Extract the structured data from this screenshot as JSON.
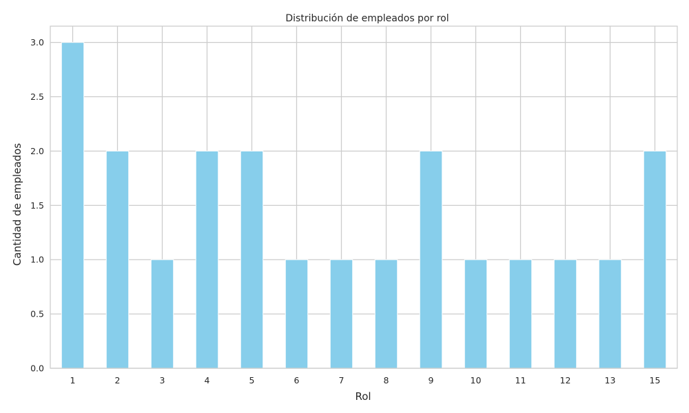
{
  "chart_data": {
    "type": "bar",
    "title": "Distribución de empleados por rol",
    "xlabel": "Rol",
    "ylabel": "Cantidad de empleados",
    "categories": [
      "1",
      "2",
      "3",
      "4",
      "5",
      "6",
      "7",
      "8",
      "9",
      "10",
      "11",
      "12",
      "13",
      "15"
    ],
    "values": [
      3,
      2,
      1,
      2,
      2,
      1,
      1,
      1,
      2,
      1,
      1,
      1,
      1,
      2
    ],
    "ylim": [
      0,
      3.15
    ],
    "yticks": [
      "0.0",
      "0.5",
      "1.0",
      "1.5",
      "2.0",
      "2.5",
      "3.0"
    ],
    "grid": true,
    "bar_color": "#87ceeb",
    "grid_color": "#cccccc"
  }
}
